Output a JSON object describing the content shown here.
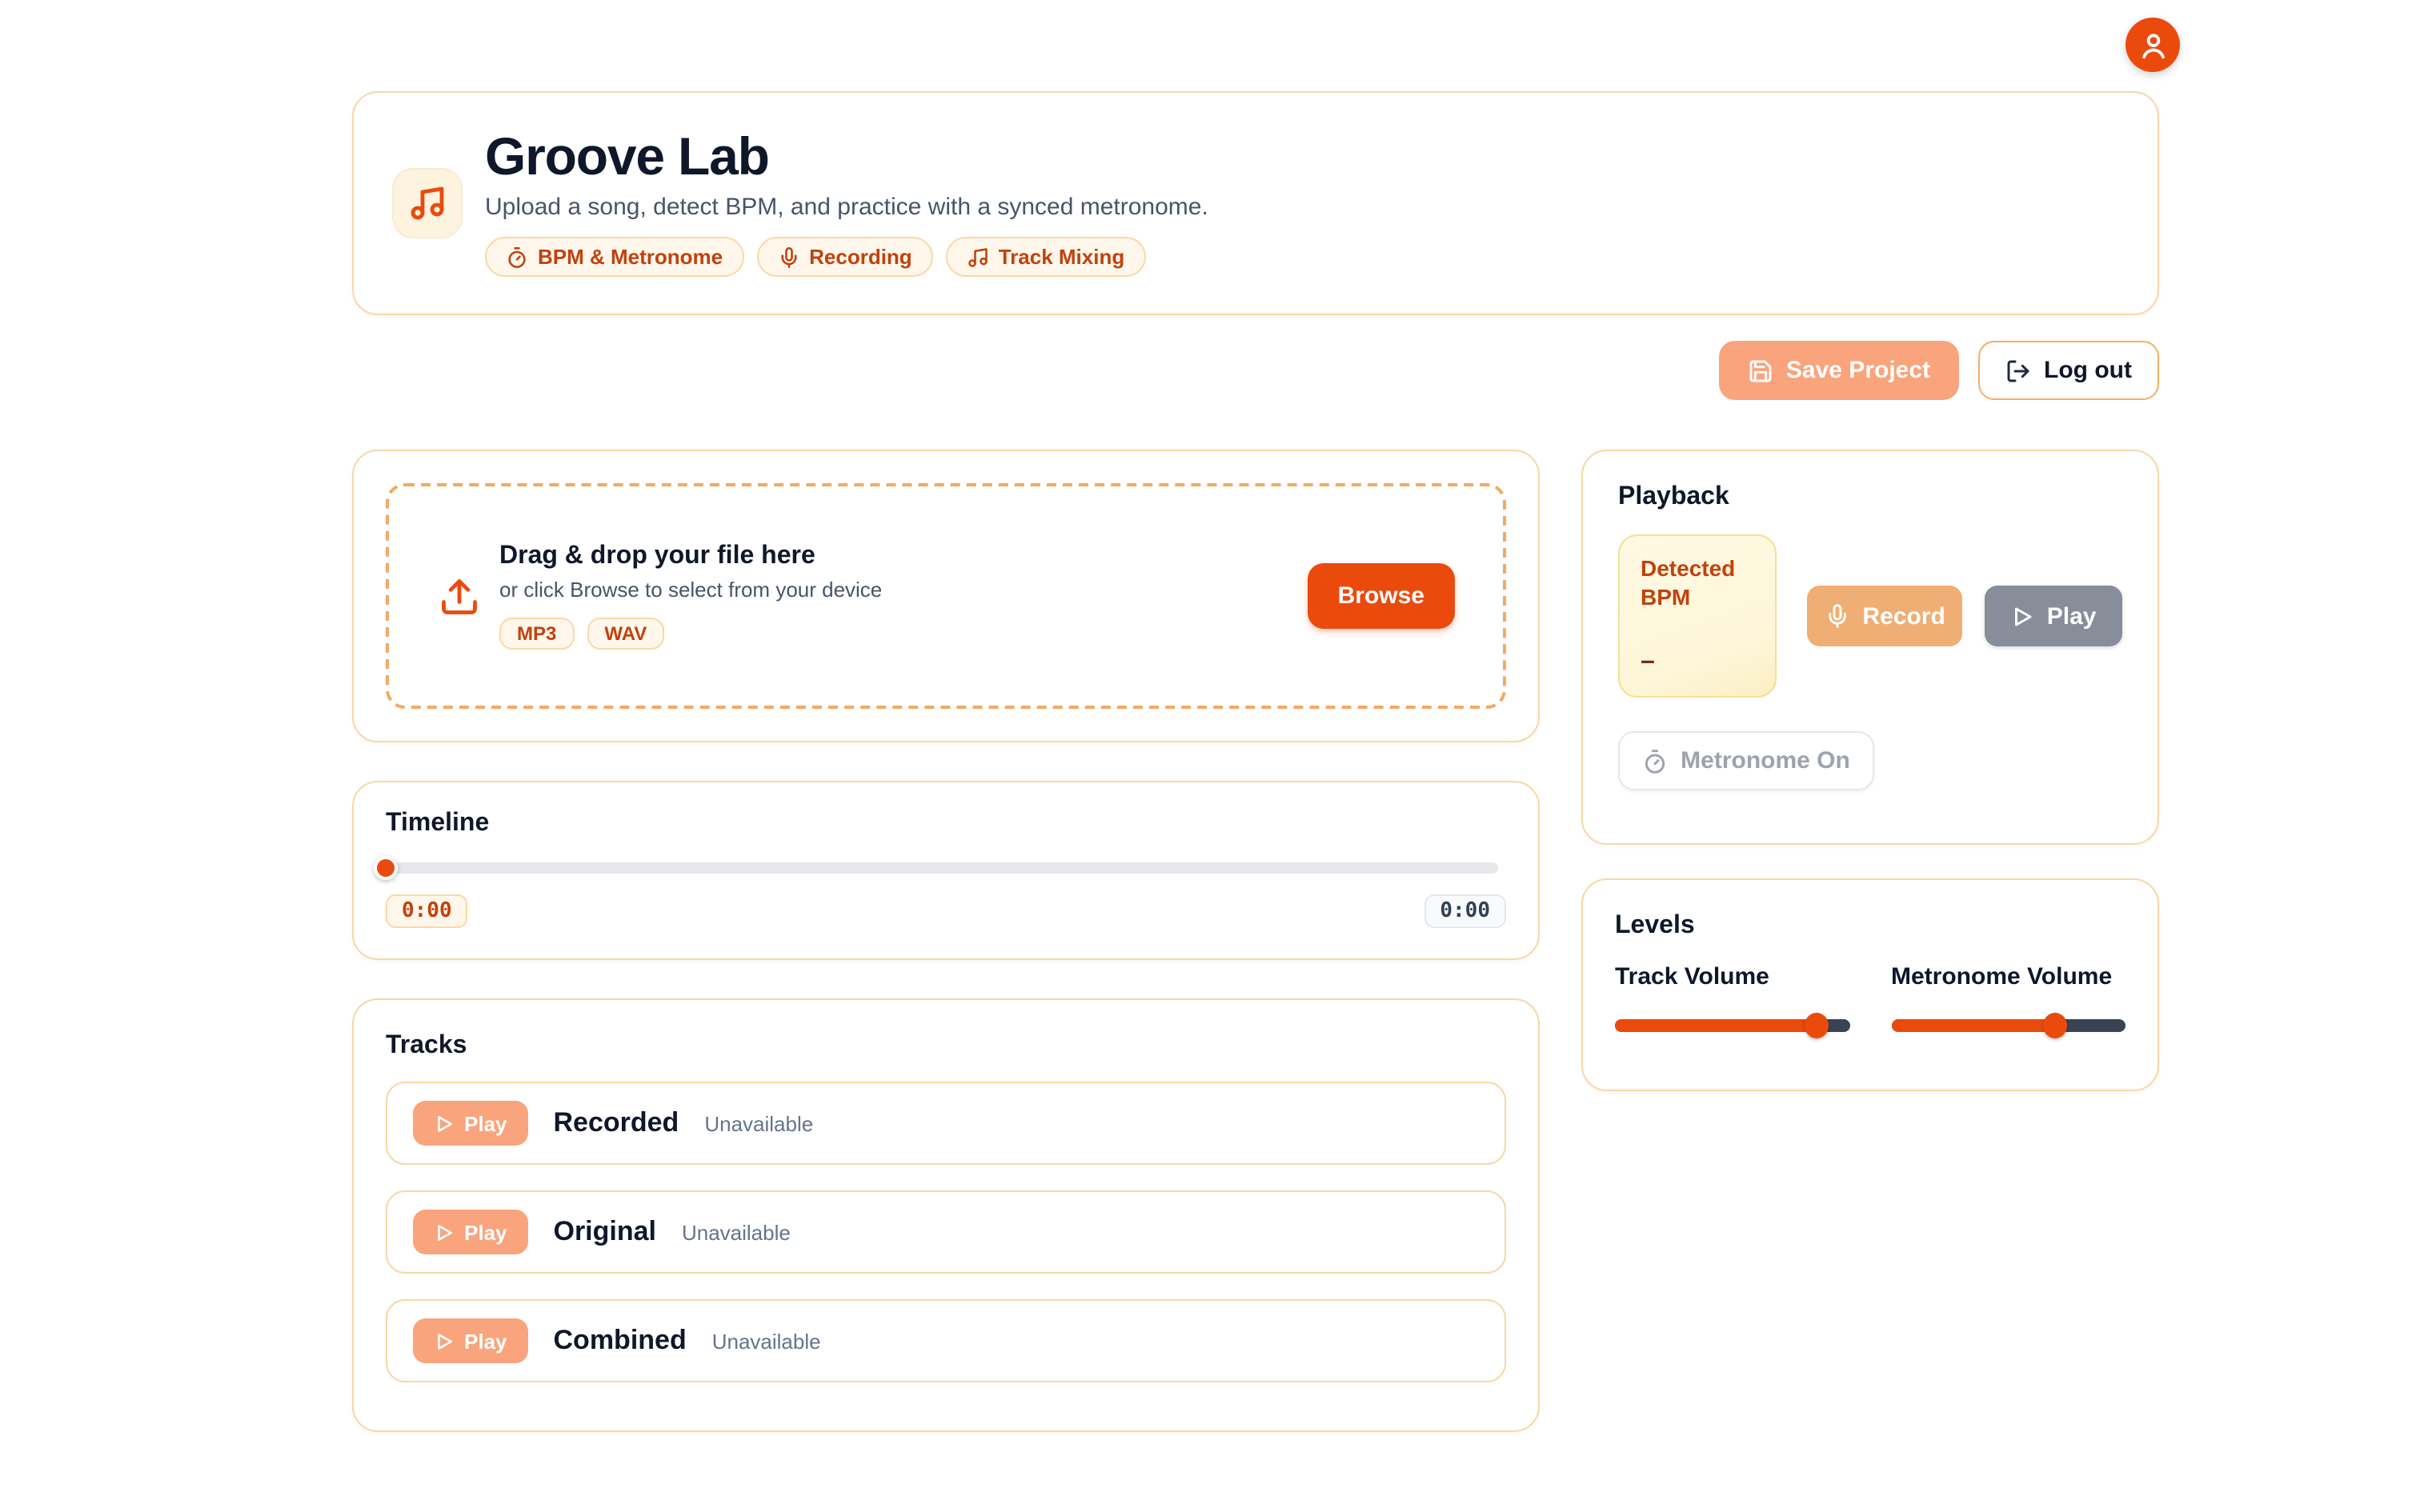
{
  "app": {
    "title": "Groove Lab",
    "subtitle": "Upload a song, detect BPM, and practice with a synced metronome.",
    "badges": [
      {
        "icon": "timer-icon",
        "label": "BPM & Metronome"
      },
      {
        "icon": "mic-icon",
        "label": "Recording"
      },
      {
        "icon": "music-note-icon",
        "label": "Track Mixing"
      }
    ]
  },
  "actions": {
    "save_label": "Save Project",
    "logout_label": "Log out"
  },
  "upload": {
    "title": "Drag & drop your file here",
    "hint": "or click Browse to select from your device",
    "formats": [
      "MP3",
      "WAV"
    ],
    "browse_label": "Browse"
  },
  "timeline": {
    "title": "Timeline",
    "current_time": "0:00",
    "total_time": "0:00",
    "progress_pct": 0
  },
  "tracks": {
    "title": "Tracks",
    "play_label": "Play",
    "items": [
      {
        "name": "Recorded",
        "status": "Unavailable"
      },
      {
        "name": "Original",
        "status": "Unavailable"
      },
      {
        "name": "Combined",
        "status": "Unavailable"
      }
    ]
  },
  "playback": {
    "title": "Playback",
    "bpm_label": "Detected BPM",
    "bpm_value": "–",
    "record_label": "Record",
    "play_label": "Play",
    "metronome_label": "Metronome On"
  },
  "levels": {
    "title": "Levels",
    "sliders": [
      {
        "label": "Track Volume",
        "value_pct": 86
      },
      {
        "label": "Metronome Volume",
        "value_pct": 70
      }
    ]
  },
  "colors": {
    "accent": "#EB4A0D",
    "salmon": "#F9A47C",
    "record_tan": "#EFAE74",
    "gray_button": "#878D99",
    "card_border": "#F8D7A5",
    "badge_bg": "#FFF7EB",
    "badge_border": "#FBD8A5",
    "badge_text": "#C2410C",
    "ink": "#0F172A",
    "muted": "#475569",
    "faint": "#64748B",
    "bpm_bg": "#FDF6D9",
    "bpm_border": "#F6DF95",
    "bpm_value": "#7C2D12",
    "slider_rest": "#3A4354",
    "track_gray": "#E5E7EB",
    "time_total_bg": "#F8FAFC",
    "time_total_border": "#E2E8F0"
  }
}
